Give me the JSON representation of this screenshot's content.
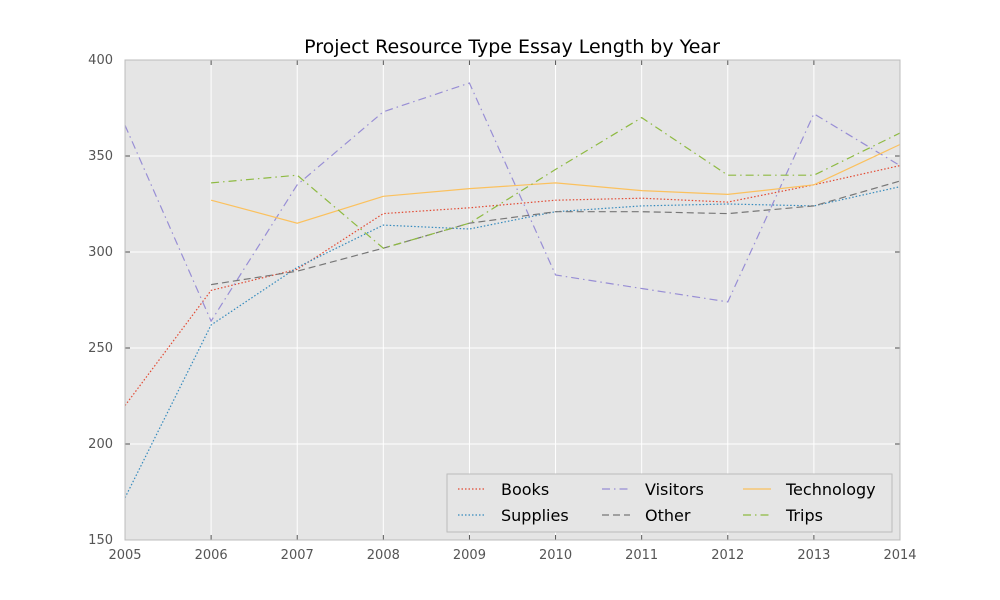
{
  "chart_data": {
    "type": "line",
    "title": "Project Resource Type Essay Length by Year",
    "xlabel": "",
    "ylabel": "",
    "xlim": [
      2005,
      2014
    ],
    "ylim": [
      150,
      400
    ],
    "x_ticks": [
      "2005",
      "2006",
      "2007",
      "2008",
      "2009",
      "2010",
      "2011",
      "2012",
      "2013",
      "2014"
    ],
    "y_ticks": [
      "150",
      "200",
      "250",
      "300",
      "350",
      "400"
    ],
    "grid": true,
    "legend_position": "lower-right",
    "series": [
      {
        "name": "Books",
        "color": "#e24a33",
        "dash": "dotted",
        "x": [
          2005,
          2006,
          2007,
          2008,
          2009,
          2010,
          2011,
          2012,
          2013,
          2014
        ],
        "values": [
          220,
          280,
          291,
          320,
          323,
          327,
          328,
          326,
          335,
          345
        ]
      },
      {
        "name": "Supplies",
        "color": "#348abd",
        "dash": "dotted",
        "x": [
          2005,
          2006,
          2007,
          2008,
          2009,
          2010,
          2011,
          2012,
          2013,
          2014
        ],
        "values": [
          172,
          262,
          292,
          314,
          312,
          321,
          324,
          325,
          324,
          334
        ]
      },
      {
        "name": "Visitors",
        "color": "#988ed5",
        "dash": "dashdot",
        "x": [
          2005,
          2006,
          2007,
          2008,
          2009,
          2010,
          2011,
          2012,
          2013,
          2014
        ],
        "values": [
          366,
          264,
          335,
          373,
          388,
          288,
          281,
          274,
          372,
          345
        ]
      },
      {
        "name": "Other",
        "color": "#777777",
        "dash": "dashed",
        "x": [
          2006,
          2007,
          2008,
          2009,
          2010,
          2011,
          2012,
          2013,
          2014
        ],
        "values": [
          283,
          290,
          302,
          315,
          321,
          321,
          320,
          324,
          337
        ]
      },
      {
        "name": "Technology",
        "color": "#fbc15e",
        "dash": "solid",
        "x": [
          2006,
          2007,
          2008,
          2009,
          2010,
          2011,
          2012,
          2013,
          2014
        ],
        "values": [
          327,
          315,
          329,
          333,
          336,
          332,
          330,
          335,
          356
        ]
      },
      {
        "name": "Trips",
        "color": "#8eba42",
        "dash": "dashdot",
        "x": [
          2006,
          2007,
          2008,
          2009,
          2010,
          2011,
          2012,
          2013,
          2014
        ],
        "values": [
          336,
          340,
          302,
          315,
          343,
          370,
          340,
          340,
          362
        ]
      }
    ],
    "legend_order": [
      "Books",
      "Supplies",
      "Visitors",
      "Other",
      "Technology",
      "Trips"
    ],
    "colors": {
      "plot_background": "#e5e5e5",
      "grid": "#ffffff",
      "axis": "#bcbcbc"
    }
  }
}
